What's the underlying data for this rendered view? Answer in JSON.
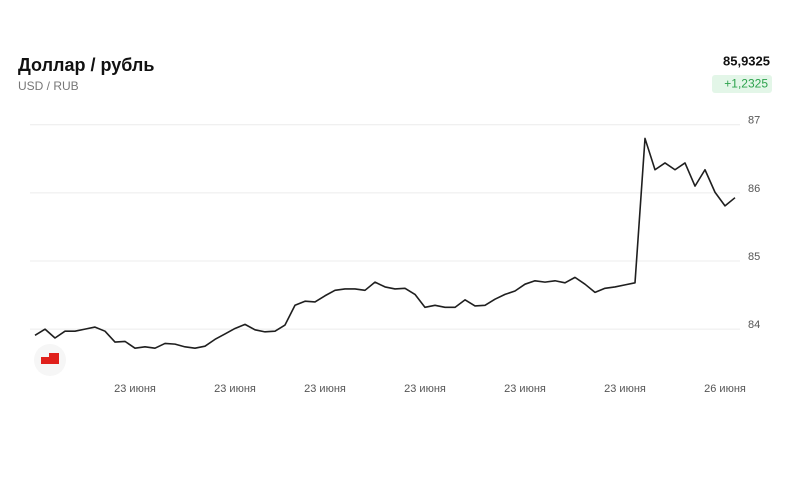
{
  "chart_data": {
    "type": "line",
    "title": "Доллар / рубль",
    "subtitle": "USD / RUB",
    "price": "85,9325",
    "change": "+1,2325",
    "categories": [
      null,
      null,
      null,
      null,
      null,
      null,
      null,
      null,
      null,
      null,
      "23 июня",
      null,
      null,
      null,
      null,
      null,
      null,
      null,
      null,
      null,
      "23 июня",
      null,
      null,
      null,
      null,
      null,
      null,
      null,
      null,
      "23 июня",
      null,
      null,
      null,
      null,
      null,
      null,
      null,
      null,
      null,
      "23 июня",
      null,
      null,
      null,
      null,
      null,
      null,
      null,
      null,
      null,
      "23 июня",
      null,
      null,
      null,
      null,
      null,
      null,
      null,
      null,
      null,
      "23 июня",
      null,
      null,
      null,
      null,
      null,
      null,
      null,
      null,
      null,
      "26 июня",
      null
    ],
    "values": [
      83.91,
      84.0,
      83.87,
      83.97,
      83.97,
      84.0,
      84.03,
      83.97,
      83.81,
      83.82,
      83.72,
      83.74,
      83.72,
      83.79,
      83.78,
      83.74,
      83.72,
      83.75,
      83.85,
      83.93,
      84.01,
      84.07,
      83.99,
      83.96,
      83.97,
      84.06,
      84.35,
      84.41,
      84.4,
      84.49,
      84.57,
      84.59,
      84.59,
      84.57,
      84.69,
      84.62,
      84.59,
      84.6,
      84.51,
      84.32,
      84.35,
      84.32,
      84.32,
      84.43,
      84.34,
      84.35,
      84.44,
      84.51,
      84.56,
      84.66,
      84.71,
      84.69,
      84.71,
      84.68,
      84.76,
      84.66,
      84.54,
      84.6,
      84.62,
      84.65,
      84.68,
      86.8,
      86.34,
      86.44,
      86.34,
      86.44,
      86.1,
      86.34,
      86.01,
      85.81,
      85.93
    ],
    "color": "#1f1f1f",
    "ylim": [
      83.4,
      87.1
    ],
    "yticks": [
      84,
      85,
      86,
      87
    ],
    "grid": true
  }
}
